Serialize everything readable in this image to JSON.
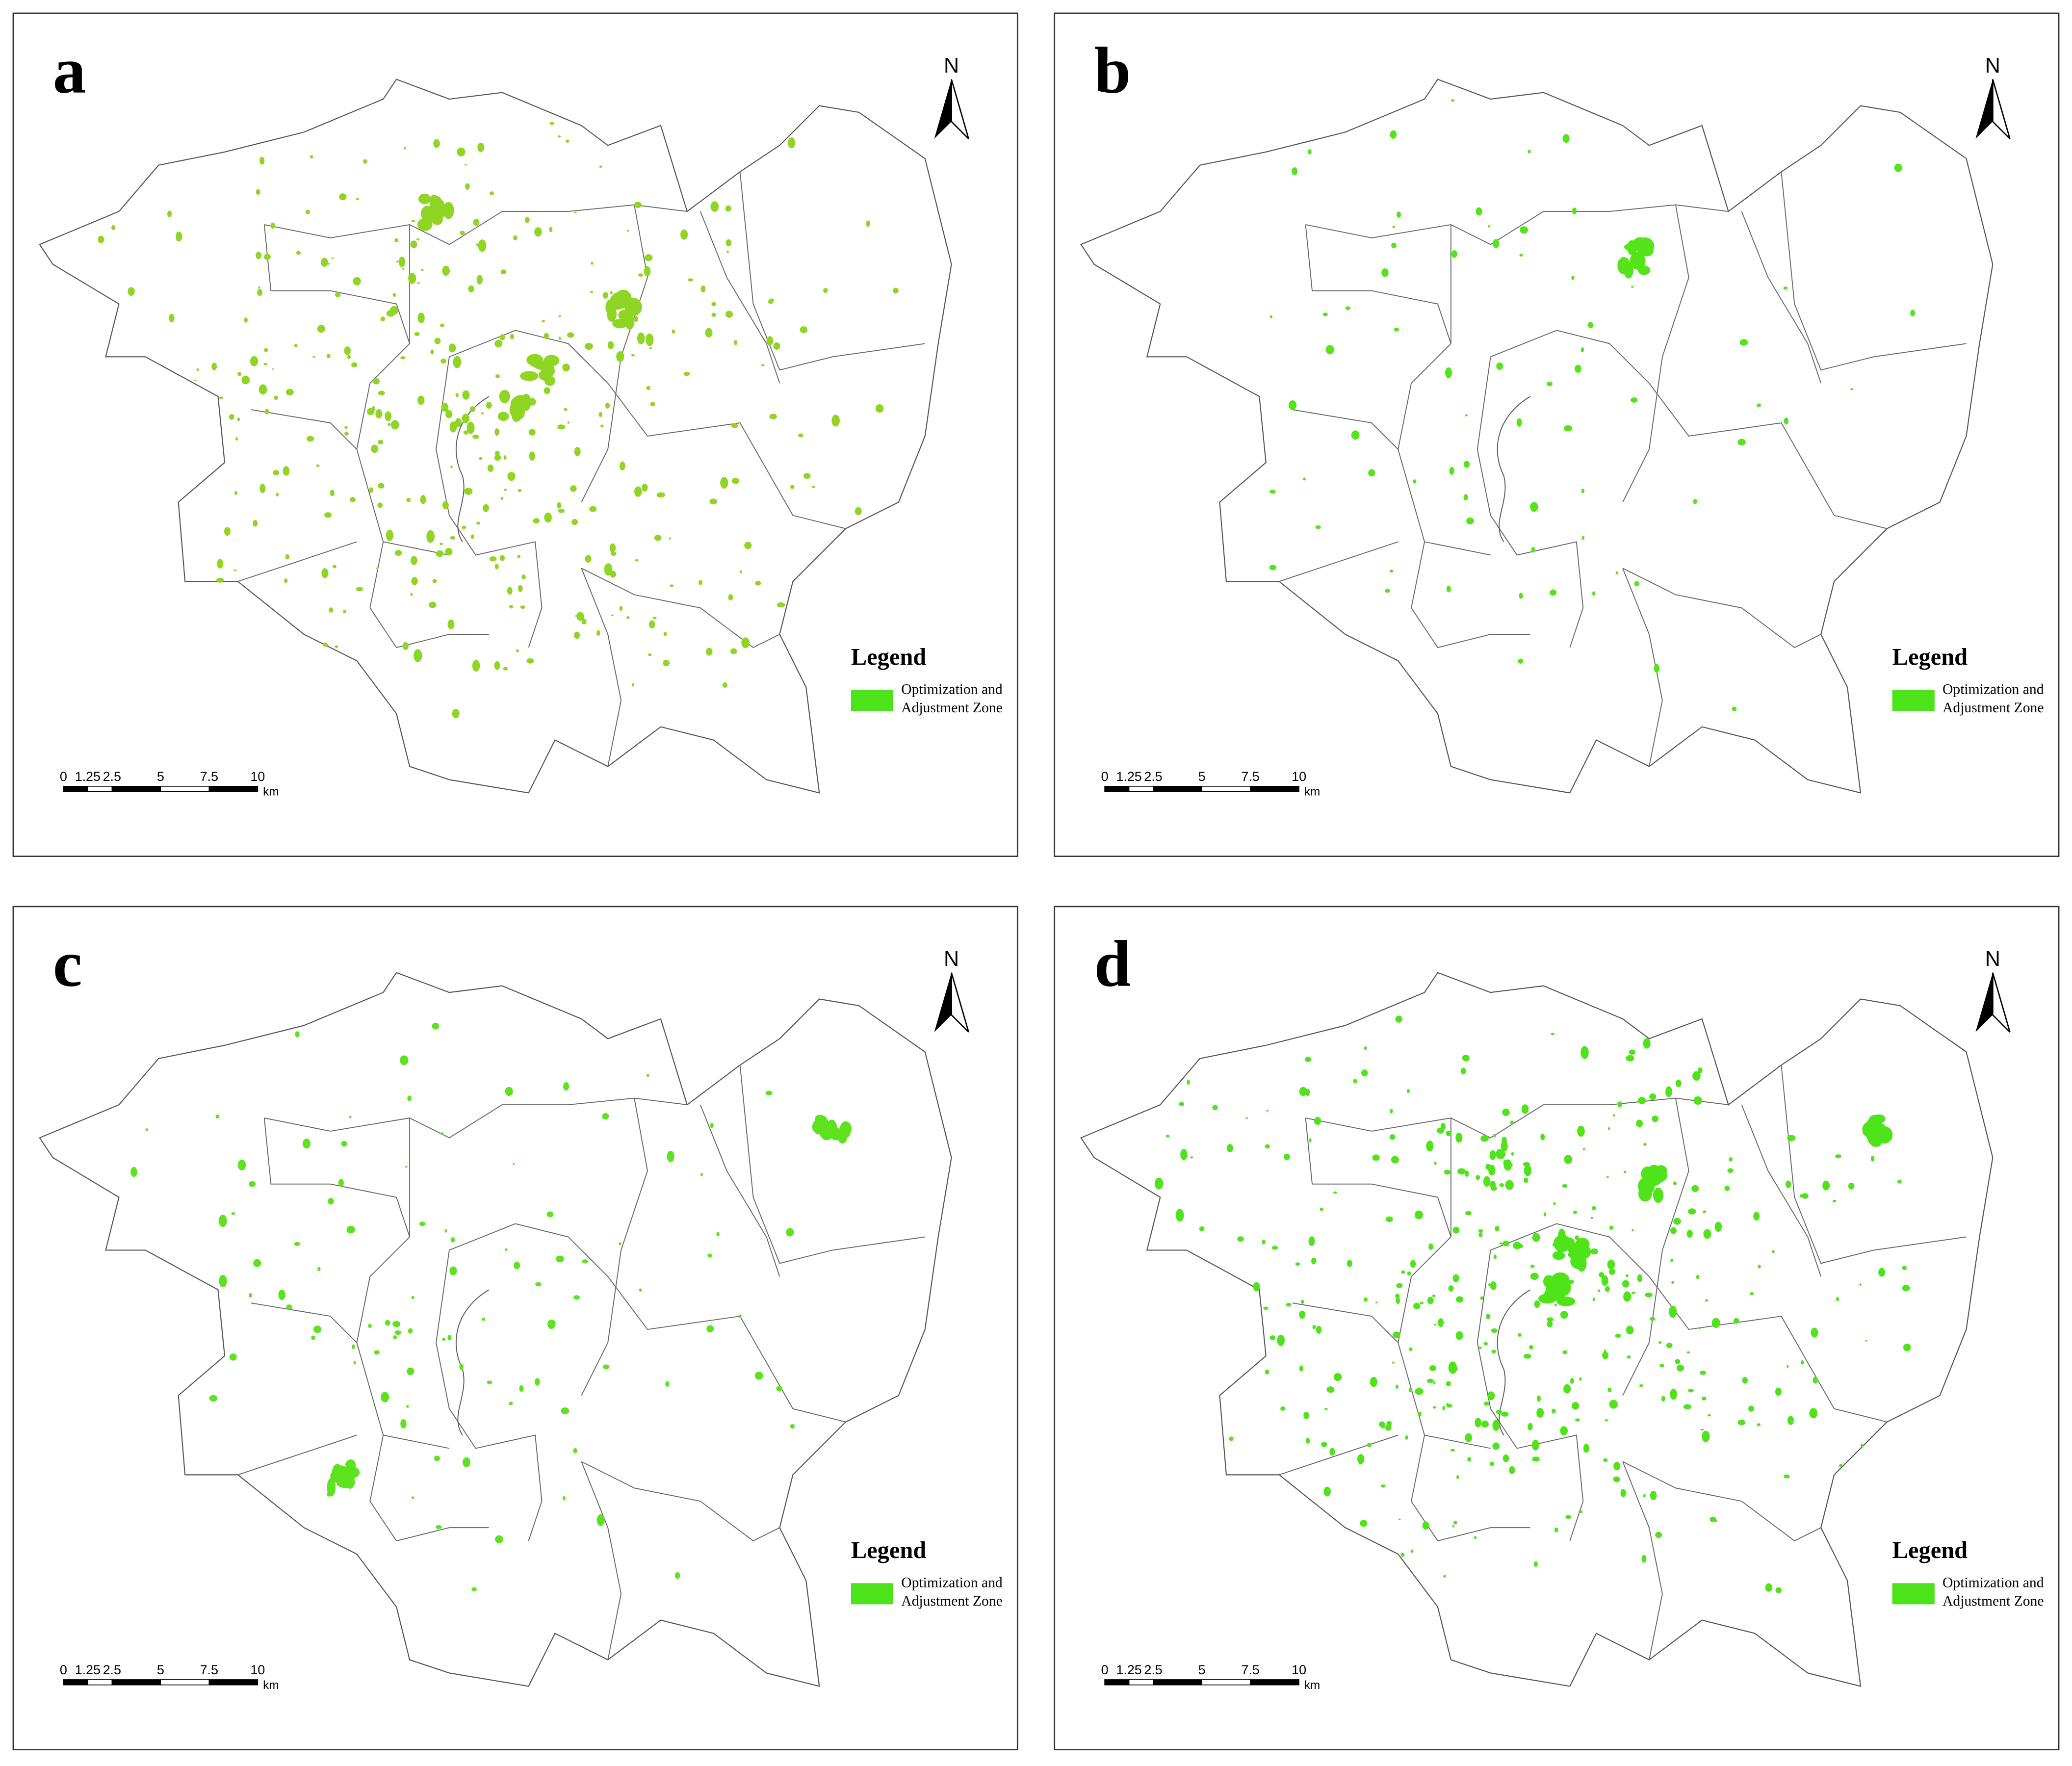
{
  "panels": [
    {
      "label": "a",
      "north": "N",
      "patch_color": "#8fd524",
      "legend": {
        "title": "Legend",
        "item": [
          "Optimization and",
          "Adjustment Zone"
        ],
        "color": "#4de31a"
      },
      "scale_bar": {
        "ticks": [
          0,
          1.25,
          2.5,
          5,
          7.5,
          10
        ],
        "unit": "km"
      }
    },
    {
      "label": "b",
      "north": "N",
      "patch_color": "#55e31a",
      "legend": {
        "title": "Legend",
        "item": [
          "Optimization and",
          "Adjustment Zone"
        ],
        "color": "#4de31a"
      },
      "scale_bar": {
        "ticks": [
          0,
          1.25,
          2.5,
          5,
          7.5,
          10
        ],
        "unit": "km"
      }
    },
    {
      "label": "c",
      "north": "N",
      "patch_color": "#5ee21f",
      "legend": {
        "title": "Legend",
        "item": [
          "Optimization and",
          "Adjustment Zone"
        ],
        "color": "#4de31a"
      },
      "scale_bar": {
        "ticks": [
          0,
          1.25,
          2.5,
          5,
          7.5,
          10
        ],
        "unit": "km"
      }
    },
    {
      "label": "d",
      "north": "N",
      "patch_color": "#4fe31a",
      "legend": {
        "title": "Legend",
        "item": [
          "Optimization and",
          "Adjustment Zone"
        ],
        "color": "#4de31a"
      },
      "scale_bar": {
        "ticks": [
          0,
          1.25,
          2.5,
          5,
          7.5,
          10
        ],
        "unit": "km"
      }
    }
  ]
}
